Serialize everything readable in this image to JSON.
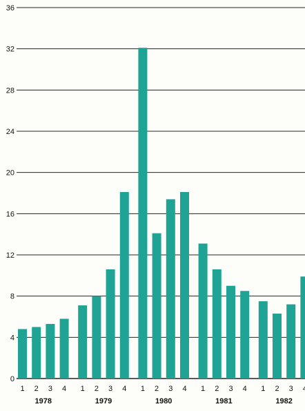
{
  "chart_data": {
    "type": "bar",
    "title": "",
    "xlabel": "",
    "ylabel": "",
    "ylim": [
      0,
      36
    ],
    "yticks": [
      0,
      4,
      8,
      12,
      16,
      20,
      24,
      28,
      32,
      36
    ],
    "grid": true,
    "legend": "none",
    "colors": {
      "bar": "#1fa394",
      "grid": "#222222",
      "text": "#111111",
      "background": "#fdfdf9"
    },
    "categories": [
      "1",
      "2",
      "3",
      "4",
      "1",
      "2",
      "3",
      "4",
      "1",
      "2",
      "3",
      "4",
      "1",
      "2",
      "3",
      "4",
      "1",
      "2",
      "3",
      "4"
    ],
    "groups": [
      {
        "label": "1978",
        "size": 4
      },
      {
        "label": "1979",
        "size": 4
      },
      {
        "label": "1980",
        "size": 4
      },
      {
        "label": "1981",
        "size": 4
      },
      {
        "label": "1982",
        "size": 4
      }
    ],
    "values": [
      4.8,
      5.0,
      5.3,
      5.8,
      7.1,
      8.0,
      10.6,
      18.1,
      32.1,
      14.1,
      17.4,
      18.1,
      13.1,
      10.6,
      9.0,
      8.5,
      7.5,
      6.3,
      7.2,
      9.9
    ]
  }
}
